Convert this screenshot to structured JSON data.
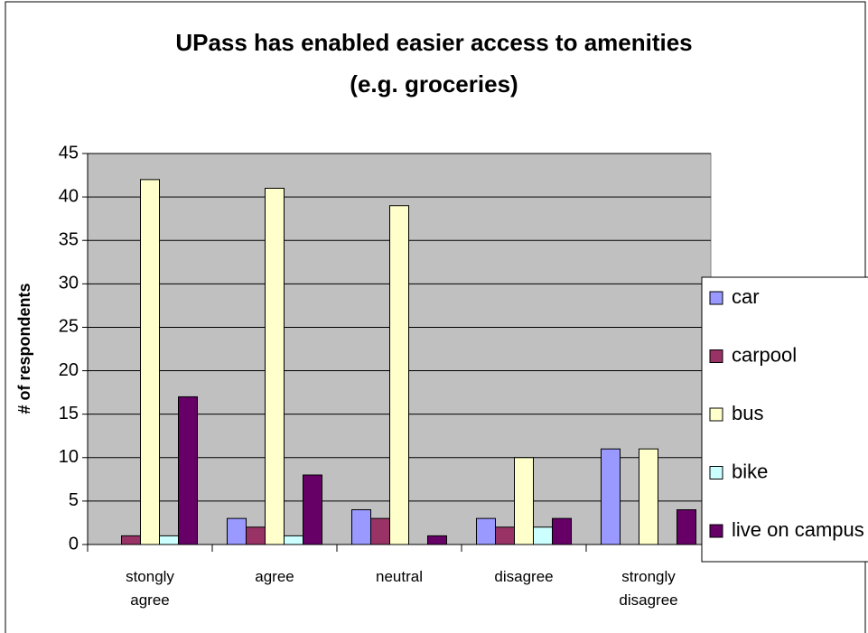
{
  "chart_data": {
    "type": "bar",
    "title": [
      "UPass has enabled easier access to amenities",
      "(e.g. groceries)"
    ],
    "y_label": "# of respondents",
    "categories": [
      "stongly agree",
      "agree",
      "neutral",
      "disagree",
      "strongly disagree"
    ],
    "series": [
      {
        "name": "car",
        "color": "#9999ff",
        "values": [
          0,
          3,
          4,
          3,
          11
        ]
      },
      {
        "name": "carpool",
        "color": "#993366",
        "values": [
          1,
          2,
          3,
          2,
          0
        ]
      },
      {
        "name": "bus",
        "color": "#ffffcc",
        "values": [
          42,
          41,
          39,
          10,
          11
        ]
      },
      {
        "name": "bike",
        "color": "#ccffff",
        "values": [
          1,
          1,
          0,
          2,
          0
        ]
      },
      {
        "name": "live on campus",
        "color": "#660066",
        "values": [
          17,
          8,
          1,
          3,
          4
        ]
      }
    ],
    "ylim": [
      0,
      45
    ],
    "yticks": [
      0,
      5,
      10,
      15,
      20,
      25,
      30,
      35,
      40,
      45
    ],
    "grid": true,
    "legend": "right"
  }
}
